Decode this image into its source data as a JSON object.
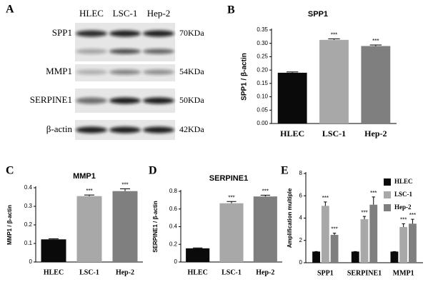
{
  "blot": {
    "panel_label": "A",
    "columns": [
      "HLEC",
      "LSC-1",
      "Hep-2"
    ],
    "rows": [
      {
        "label": "SPP1",
        "size": "70KDa"
      },
      {
        "label": "MMP1",
        "size": "54KDa"
      },
      {
        "label": "SERPINE1",
        "size": "50KDa"
      },
      {
        "label": "β-actin",
        "size": "42KDa"
      }
    ]
  },
  "chart_data": [
    {
      "type": "bar",
      "panel_label": "B",
      "title": "SPP1",
      "y_label": "SPP1 / β-actin",
      "categories": [
        "HLEC",
        "LSC-1",
        "Hep-2"
      ],
      "values": [
        0.19,
        0.313,
        0.29
      ],
      "errors": [
        0.003,
        0.004,
        0.004
      ],
      "annotations": [
        null,
        "***",
        "***"
      ],
      "colors": [
        "#0a0a0a",
        "#a8a8a8",
        "#7f7f7f"
      ],
      "ylim": [
        0,
        0.35
      ],
      "yticks": [
        {
          "value": 0,
          "label": "0.00"
        },
        {
          "value": 0.05,
          "label": "0.05"
        },
        {
          "value": 0.1,
          "label": "0.10"
        },
        {
          "value": 0.15,
          "label": "0.15"
        },
        {
          "value": 0.2,
          "label": "0.20"
        },
        {
          "value": 0.25,
          "label": "0.25"
        },
        {
          "value": 0.3,
          "label": "0.30"
        },
        {
          "value": 0.35,
          "label": "0.35"
        }
      ]
    },
    {
      "type": "bar",
      "panel_label": "C",
      "title": "MMP1",
      "y_label": "MMP1 / β-actin",
      "categories": [
        "HLEC",
        "LSC-1",
        "Hep-2"
      ],
      "values": [
        0.122,
        0.355,
        0.382
      ],
      "errors": [
        0.003,
        0.006,
        0.012
      ],
      "annotations": [
        null,
        "***",
        "***"
      ],
      "colors": [
        "#0a0a0a",
        "#a8a8a8",
        "#7f7f7f"
      ],
      "ylim": [
        0,
        0.4
      ],
      "yticks": [
        0,
        0.1,
        0.2,
        0.3,
        0.4
      ]
    },
    {
      "type": "bar",
      "panel_label": "D",
      "title": "SERPINE1",
      "y_label": "SERPINE1 / β-actin",
      "categories": [
        "HLEC",
        "LSC-1",
        "Hep-2"
      ],
      "values": [
        0.155,
        0.665,
        0.742
      ],
      "errors": [
        0.005,
        0.02,
        0.015
      ],
      "annotations": [
        null,
        "***",
        "***"
      ],
      "colors": [
        "#0a0a0a",
        "#a8a8a8",
        "#7f7f7f"
      ],
      "ylim": [
        0,
        0.8
      ],
      "yticks": [
        0,
        0.2,
        0.4,
        0.6,
        0.8
      ]
    },
    {
      "type": "bar",
      "panel_label": "E",
      "y_label": "Amplification multiple",
      "categories": [
        "SPP1",
        "SERPINE1",
        "MMP1"
      ],
      "series": [
        {
          "name": "HLEC",
          "color": "#0a0a0a",
          "values": [
            1,
            1,
            1
          ],
          "errors": [
            0,
            0,
            0
          ],
          "annotations": [
            null,
            null,
            null
          ]
        },
        {
          "name": "LSC-1",
          "color": "#a8a8a8",
          "values": [
            5.1,
            3.9,
            3.2
          ],
          "errors": [
            0.35,
            0.25,
            0.3
          ],
          "annotations": [
            "***",
            "***",
            "***"
          ]
        },
        {
          "name": "Hep-2",
          "color": "#7f7f7f",
          "values": [
            2.5,
            5.2,
            3.5
          ],
          "errors": [
            0.15,
            0.7,
            0.4
          ],
          "annotations": [
            "***",
            "***",
            "***"
          ]
        }
      ],
      "ylim": [
        0,
        8
      ],
      "yticks": [
        0,
        2,
        4,
        6,
        8
      ],
      "legend": "upper right"
    }
  ]
}
